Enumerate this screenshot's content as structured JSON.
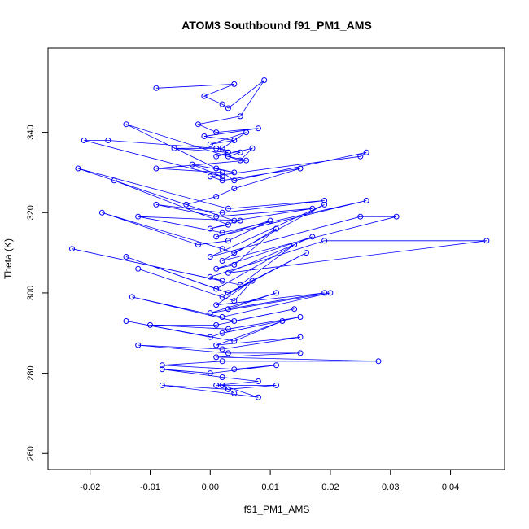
{
  "chart_data": {
    "type": "scatter",
    "title": "ATOM3 Southbound f91_PM1_AMS",
    "xlabel": "f91_PM1_AMS",
    "ylabel": "Theta (K)",
    "xlim": [
      -0.027,
      0.049
    ],
    "ylim": [
      256,
      361
    ],
    "x_ticks": [
      -0.02,
      -0.01,
      0.0,
      0.01,
      0.02,
      0.03,
      0.04
    ],
    "x_tick_labels": [
      "-0.02",
      "-0.01",
      "0.00",
      "0.01",
      "0.02",
      "0.03",
      "0.04"
    ],
    "y_ticks": [
      260,
      280,
      300,
      320,
      340
    ],
    "y_tick_labels": [
      "260",
      "280",
      "300",
      "320",
      "340"
    ],
    "grid": false,
    "legend": "none",
    "point_style": "open-circle-with-lines",
    "series_color": "#0000ff",
    "series": [
      {
        "x": [
          -0.009,
          0.004,
          -0.001,
          0.002,
          0.003,
          0.009,
          0.005,
          -0.002,
          0.001,
          0.008,
          -0.001,
          0.004,
          0.0,
          0.006,
          0.002,
          -0.006,
          0.003,
          0.001,
          0.007,
          0.005,
          -0.014,
          0.001,
          0.004,
          -0.003,
          0.002,
          -0.021,
          -0.017,
          0.001,
          0.005,
          0.003,
          0.006,
          -0.009,
          0.002,
          0.004,
          0.026,
          0.025,
          0.0,
          0.002,
          0.015,
          0.004,
          0.001,
          -0.004,
          -0.022,
          0.003,
          0.019,
          0.002,
          -0.009,
          0.001,
          0.017,
          0.004,
          -0.016,
          0.003,
          0.0,
          0.005,
          -0.012,
          0.002,
          0.026,
          0.001,
          0.01,
          0.003,
          -0.002,
          -0.018,
          0.002,
          0.004,
          0.019,
          0.0,
          0.025,
          0.031,
          0.002,
          0.011,
          0.004,
          0.001,
          0.017,
          0.003,
          0.046,
          0.019,
          0.0,
          0.002,
          -0.023,
          0.005,
          0.014,
          0.001,
          -0.014,
          0.003,
          0.016,
          0.002,
          -0.012,
          0.004,
          0.007,
          0.001,
          0.019,
          0.003,
          0.011,
          0.0,
          0.02,
          0.002,
          -0.013,
          0.004,
          0.014,
          0.001,
          -0.01,
          0.003,
          0.015,
          0.002,
          0.0,
          -0.014,
          0.004,
          0.012,
          0.001,
          0.015,
          0.002,
          -0.012,
          0.003,
          0.015,
          0.001,
          0.028,
          0.002,
          -0.008,
          0.004,
          0.011,
          0.0,
          -0.008,
          0.002,
          0.008,
          0.001,
          0.011,
          0.003,
          -0.008,
          0.008,
          0.002,
          0.003,
          0.004
        ],
        "y": [
          351,
          352,
          349,
          347,
          346,
          353,
          344,
          342,
          340,
          341,
          339,
          338,
          337,
          340,
          336,
          336,
          335,
          334,
          336,
          333,
          342,
          331,
          330,
          332,
          329,
          338,
          338,
          336,
          335,
          334,
          333,
          331,
          330,
          328,
          335,
          334,
          329,
          328,
          331,
          326,
          324,
          322,
          331,
          321,
          323,
          320,
          322,
          319,
          321,
          318,
          328,
          317,
          316,
          318,
          319,
          315,
          323,
          314,
          318,
          313,
          312,
          320,
          311,
          310,
          322,
          309,
          319,
          319,
          308,
          316,
          307,
          306,
          314,
          305,
          313,
          313,
          304,
          303,
          311,
          302,
          312,
          301,
          309,
          300,
          310,
          299,
          306,
          298,
          303,
          297,
          300,
          296,
          300,
          295,
          300,
          294,
          299,
          293,
          296,
          292,
          292,
          291,
          294,
          290,
          289,
          293,
          288,
          293,
          287,
          289,
          286,
          287,
          285,
          285,
          284,
          283,
          283,
          282,
          281,
          282,
          280,
          281,
          279,
          278,
          277,
          277,
          276,
          277,
          274,
          277,
          276,
          275
        ]
      }
    ]
  }
}
